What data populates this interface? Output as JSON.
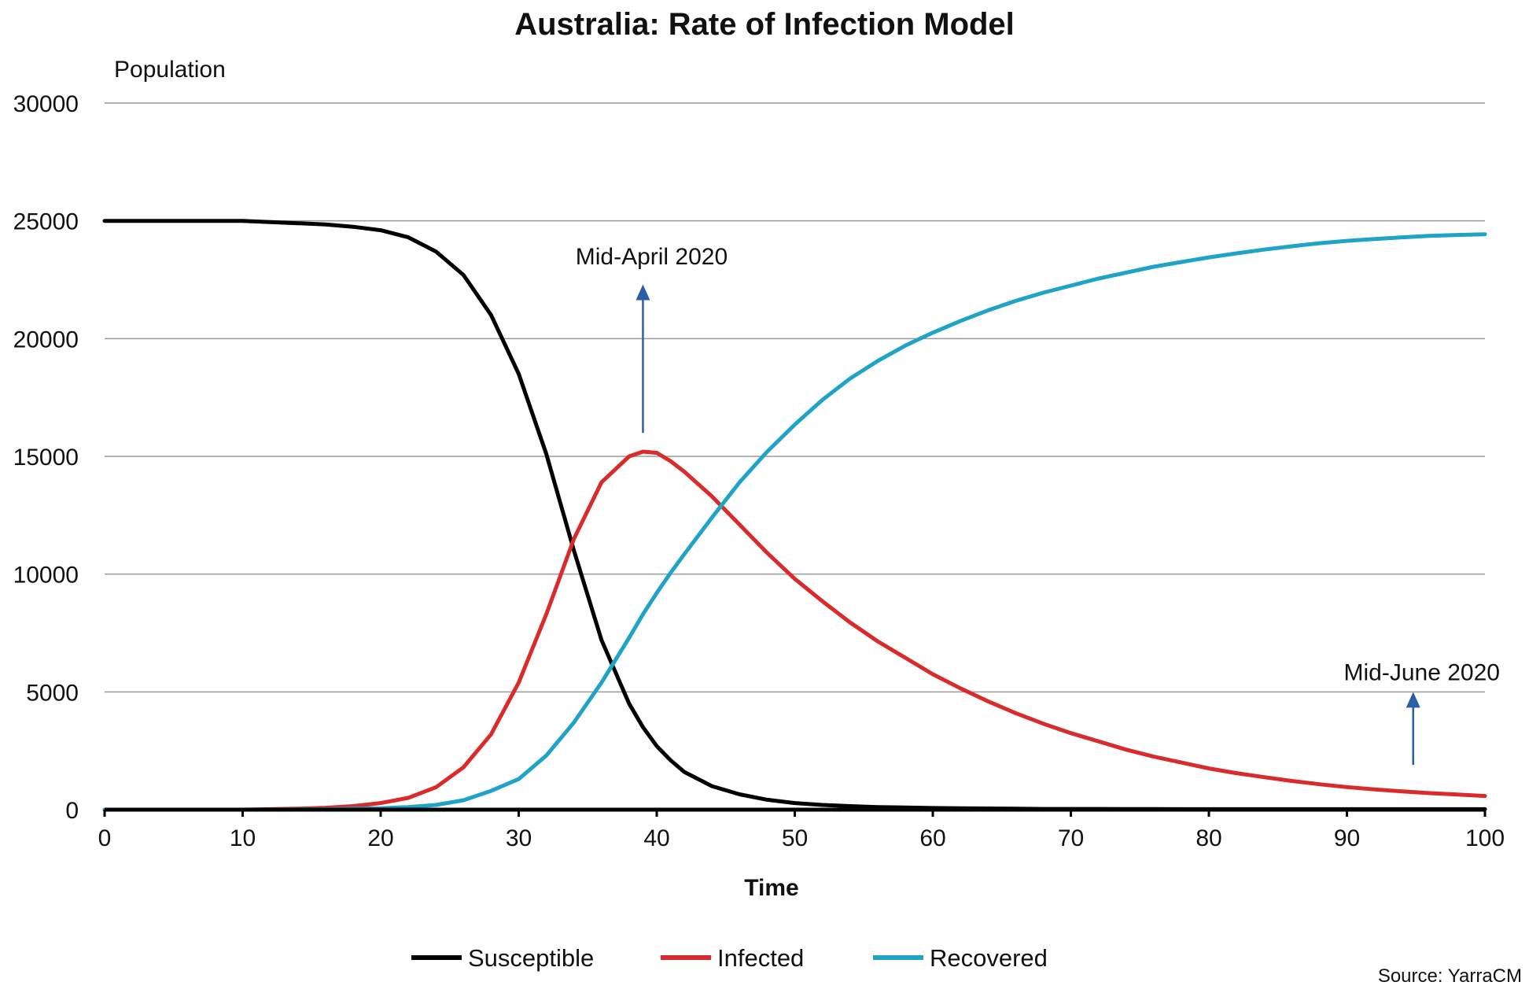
{
  "chart_data": {
    "type": "line",
    "title": "Australia: Rate of Infection Model",
    "xlabel": "Time",
    "ylabel": "Population",
    "xlim": [
      0,
      100
    ],
    "ylim": [
      0,
      30000
    ],
    "xticks": [
      0,
      10,
      20,
      30,
      40,
      50,
      60,
      70,
      80,
      90,
      100
    ],
    "yticks": [
      0,
      5000,
      10000,
      15000,
      20000,
      25000,
      30000
    ],
    "grid": "horizontal",
    "legend_position": "bottom-center",
    "x": [
      0,
      5,
      10,
      12,
      14,
      16,
      18,
      20,
      22,
      24,
      26,
      28,
      30,
      32,
      34,
      36,
      38,
      39,
      40,
      41,
      42,
      44,
      46,
      48,
      50,
      52,
      54,
      56,
      58,
      60,
      62,
      64,
      66,
      68,
      70,
      72,
      74,
      76,
      78,
      80,
      82,
      84,
      86,
      88,
      90,
      92,
      94,
      96,
      98,
      100
    ],
    "series": [
      {
        "name": "Susceptible",
        "color": "#000000",
        "values": [
          25000,
          25000,
          25000,
          24950,
          24900,
          24850,
          24750,
          24600,
          24300,
          23700,
          22700,
          21000,
          18500,
          15100,
          11000,
          7200,
          4500,
          3500,
          2700,
          2100,
          1600,
          1000,
          650,
          420,
          280,
          200,
          150,
          110,
          90,
          70,
          60,
          50,
          40,
          30,
          30,
          30,
          25,
          25,
          20,
          20,
          20,
          20,
          20,
          20,
          20,
          20,
          20,
          20,
          20,
          20
        ]
      },
      {
        "name": "Infected",
        "color": "#d92b2b",
        "values": [
          0,
          0,
          0,
          20,
          40,
          80,
          150,
          280,
          500,
          950,
          1800,
          3200,
          5400,
          8300,
          11500,
          13900,
          15000,
          15200,
          15150,
          14800,
          14350,
          13300,
          12100,
          10900,
          9800,
          8850,
          7950,
          7150,
          6450,
          5750,
          5150,
          4600,
          4100,
          3650,
          3250,
          2900,
          2550,
          2250,
          2000,
          1750,
          1550,
          1380,
          1220,
          1080,
          960,
          860,
          780,
          700,
          640,
          580
        ]
      },
      {
        "name": "Recovered",
        "color": "#1fa3c6",
        "values": [
          0,
          0,
          0,
          0,
          10,
          20,
          40,
          60,
          110,
          200,
          400,
          800,
          1300,
          2300,
          3700,
          5400,
          7300,
          8300,
          9200,
          10050,
          10850,
          12400,
          13900,
          15200,
          16350,
          17400,
          18300,
          19050,
          19700,
          20250,
          20750,
          21200,
          21600,
          21950,
          22250,
          22550,
          22800,
          23050,
          23250,
          23450,
          23620,
          23780,
          23920,
          24050,
          24150,
          24230,
          24300,
          24360,
          24400,
          24430
        ]
      }
    ],
    "annotations": [
      {
        "text": "Mid-April 2020",
        "x": 39,
        "y_text": 23150,
        "arrow_from_y": 16000,
        "arrow_to_y": 22300,
        "color": "#2a5ea8"
      },
      {
        "text": "Mid-June 2020",
        "x": 94.8,
        "y_text": 5500,
        "arrow_from_y": 1900,
        "arrow_to_y": 5000,
        "color": "#2a5ea8"
      }
    ],
    "source": "Source: YarraCM"
  }
}
